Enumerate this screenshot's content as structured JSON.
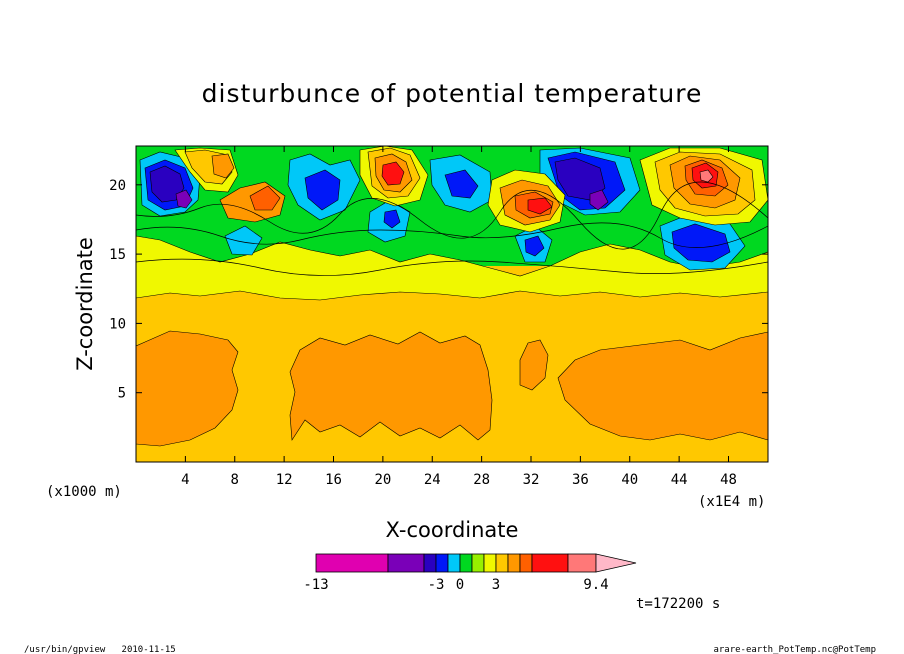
{
  "chart_data": {
    "type": "contour",
    "title": "disturbunce of potential temperature",
    "xlabel": "X-coordinate",
    "ylabel": "Z-coordinate",
    "x_unit_note": "(x1E4 m)",
    "y_unit_note": "(x1000 m)",
    "xlim": [
      0,
      51.2
    ],
    "ylim": [
      0,
      22.8
    ],
    "x_ticks": [
      4,
      8,
      12,
      16,
      20,
      24,
      28,
      32,
      36,
      40,
      44,
      48
    ],
    "y_ticks": [
      5,
      10,
      15,
      20
    ],
    "colorbar": {
      "tick_labels": [
        "-13",
        "-3",
        "0",
        "3",
        "9.4"
      ],
      "tick_values": [
        -13,
        -3,
        0,
        3,
        9.4
      ],
      "colors": [
        "#e000b0",
        "#7a00b8",
        "#2a00c0",
        "#0018f8",
        "#00c8f8",
        "#00d820",
        "#98f000",
        "#f0f800",
        "#ffc800",
        "#ff9800",
        "#ff6000",
        "#ff1010",
        "#ff7878",
        "#ffb8c8"
      ],
      "extend": "max"
    },
    "time_label": "t=172200 s",
    "grid": false
  },
  "footer": {
    "left": "/usr/bin/gpview   2010-11-15",
    "right": "arare-earth_PotTemp.nc@PotTemp"
  }
}
